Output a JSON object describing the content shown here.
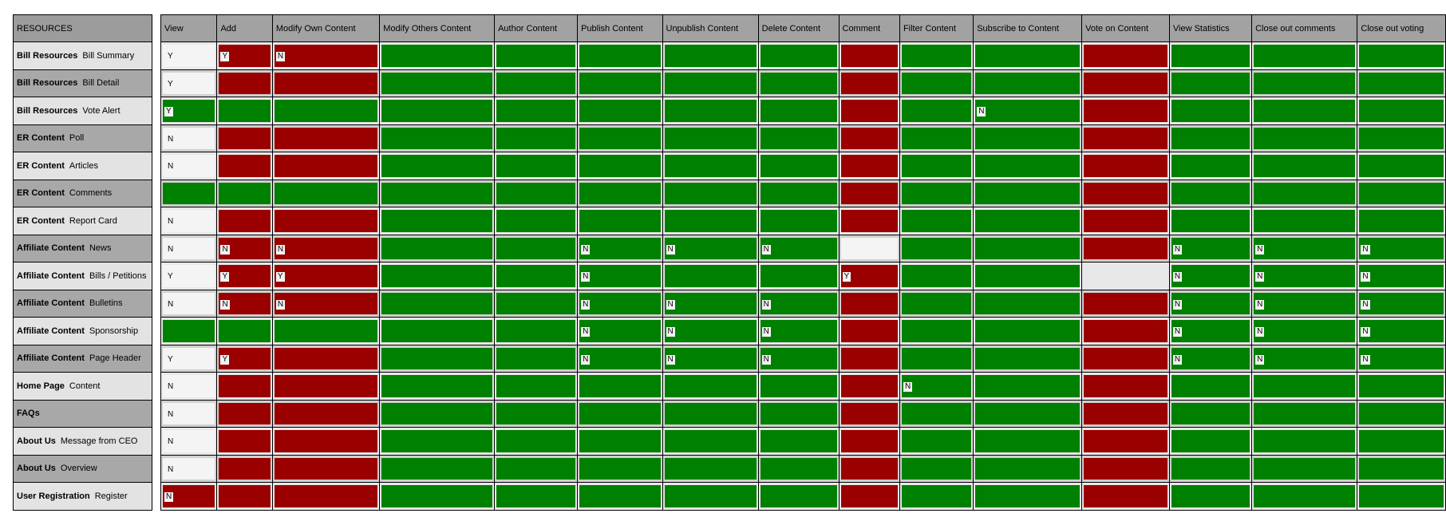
{
  "header": {
    "resources_label": "RESOURCES",
    "columns": [
      "View",
      "Add",
      "Modify Own Content",
      "Modify Others Content",
      "Author Content",
      "Publish Content",
      "Unpublish Content",
      "Delete Content",
      "Comment",
      "Filter Content",
      "Subscribe to Content",
      "Vote on Content",
      "View Statistics",
      "Close out comments",
      "Close out voting"
    ]
  },
  "colors": {
    "deny": "#9b0000",
    "allow": "#008000",
    "header": "#a2a2a2"
  },
  "rows": [
    {
      "group": "Bill Resources",
      "name": "Bill Summary",
      "cells": [
        [
          "w",
          "Y"
        ],
        [
          "r",
          "Y"
        ],
        [
          "r",
          "N"
        ],
        [
          "g",
          ""
        ],
        [
          "g",
          ""
        ],
        [
          "g",
          ""
        ],
        [
          "g",
          ""
        ],
        [
          "g",
          ""
        ],
        [
          "r",
          ""
        ],
        [
          "g",
          ""
        ],
        [
          "g",
          ""
        ],
        [
          "r",
          ""
        ],
        [
          "g",
          ""
        ],
        [
          "g",
          ""
        ],
        [
          "g",
          ""
        ]
      ]
    },
    {
      "group": "Bill Resources",
      "name": "Bill Detail",
      "cells": [
        [
          "w",
          "Y"
        ],
        [
          "r",
          ""
        ],
        [
          "r",
          ""
        ],
        [
          "g",
          ""
        ],
        [
          "g",
          ""
        ],
        [
          "g",
          ""
        ],
        [
          "g",
          ""
        ],
        [
          "g",
          ""
        ],
        [
          "r",
          ""
        ],
        [
          "g",
          ""
        ],
        [
          "g",
          ""
        ],
        [
          "r",
          ""
        ],
        [
          "g",
          ""
        ],
        [
          "g",
          ""
        ],
        [
          "g",
          ""
        ]
      ]
    },
    {
      "group": "Bill Resources",
      "name": "Vote Alert",
      "cells": [
        [
          "g",
          "Y"
        ],
        [
          "g",
          ""
        ],
        [
          "g",
          ""
        ],
        [
          "g",
          ""
        ],
        [
          "g",
          ""
        ],
        [
          "g",
          ""
        ],
        [
          "g",
          ""
        ],
        [
          "g",
          ""
        ],
        [
          "r",
          ""
        ],
        [
          "g",
          ""
        ],
        [
          "g",
          "N"
        ],
        [
          "r",
          ""
        ],
        [
          "g",
          ""
        ],
        [
          "g",
          ""
        ],
        [
          "g",
          ""
        ]
      ]
    },
    {
      "group": "ER Content",
      "name": "Poll",
      "cells": [
        [
          "w",
          "N"
        ],
        [
          "r",
          ""
        ],
        [
          "r",
          ""
        ],
        [
          "g",
          ""
        ],
        [
          "g",
          ""
        ],
        [
          "g",
          ""
        ],
        [
          "g",
          ""
        ],
        [
          "g",
          ""
        ],
        [
          "r",
          ""
        ],
        [
          "g",
          ""
        ],
        [
          "g",
          ""
        ],
        [
          "r",
          ""
        ],
        [
          "g",
          ""
        ],
        [
          "g",
          ""
        ],
        [
          "g",
          ""
        ]
      ]
    },
    {
      "group": "ER Content",
      "name": "Articles",
      "cells": [
        [
          "w",
          "N"
        ],
        [
          "r",
          ""
        ],
        [
          "r",
          ""
        ],
        [
          "g",
          ""
        ],
        [
          "g",
          ""
        ],
        [
          "g",
          ""
        ],
        [
          "g",
          ""
        ],
        [
          "g",
          ""
        ],
        [
          "r",
          ""
        ],
        [
          "g",
          ""
        ],
        [
          "g",
          ""
        ],
        [
          "r",
          ""
        ],
        [
          "g",
          ""
        ],
        [
          "g",
          ""
        ],
        [
          "g",
          ""
        ]
      ]
    },
    {
      "group": "ER Content",
      "name": "Comments",
      "cells": [
        [
          "g",
          ""
        ],
        [
          "g",
          ""
        ],
        [
          "g",
          ""
        ],
        [
          "g",
          ""
        ],
        [
          "g",
          ""
        ],
        [
          "g",
          ""
        ],
        [
          "g",
          ""
        ],
        [
          "g",
          ""
        ],
        [
          "r",
          ""
        ],
        [
          "g",
          ""
        ],
        [
          "g",
          ""
        ],
        [
          "r",
          ""
        ],
        [
          "g",
          ""
        ],
        [
          "g",
          ""
        ],
        [
          "g",
          ""
        ]
      ]
    },
    {
      "group": "ER Content",
      "name": "Report Card",
      "cells": [
        [
          "w",
          "N"
        ],
        [
          "r",
          ""
        ],
        [
          "r",
          ""
        ],
        [
          "g",
          ""
        ],
        [
          "g",
          ""
        ],
        [
          "g",
          ""
        ],
        [
          "g",
          ""
        ],
        [
          "g",
          ""
        ],
        [
          "r",
          ""
        ],
        [
          "g",
          ""
        ],
        [
          "g",
          ""
        ],
        [
          "r",
          ""
        ],
        [
          "g",
          ""
        ],
        [
          "g",
          ""
        ],
        [
          "g",
          ""
        ]
      ]
    },
    {
      "group": "Affiliate Content",
      "name": "News",
      "cells": [
        [
          "w",
          "N"
        ],
        [
          "r",
          "N"
        ],
        [
          "r",
          "N"
        ],
        [
          "g",
          ""
        ],
        [
          "g",
          ""
        ],
        [
          "g",
          "N"
        ],
        [
          "g",
          "N"
        ],
        [
          "g",
          "N"
        ],
        [
          "w",
          ""
        ],
        [
          "g",
          ""
        ],
        [
          "g",
          ""
        ],
        [
          "r",
          ""
        ],
        [
          "g",
          "N"
        ],
        [
          "g",
          "N"
        ],
        [
          "g",
          "N"
        ]
      ]
    },
    {
      "group": "Affiliate Content",
      "name": "Bills / Petitions",
      "cells": [
        [
          "w",
          "Y"
        ],
        [
          "r",
          "Y"
        ],
        [
          "r",
          "Y"
        ],
        [
          "g",
          ""
        ],
        [
          "g",
          ""
        ],
        [
          "g",
          "N"
        ],
        [
          "g",
          ""
        ],
        [
          "g",
          ""
        ],
        [
          "r",
          "Y"
        ],
        [
          "g",
          ""
        ],
        [
          "g",
          ""
        ],
        [
          "e",
          ""
        ],
        [
          "g",
          "N"
        ],
        [
          "g",
          "N"
        ],
        [
          "g",
          "N"
        ]
      ]
    },
    {
      "group": "Affiliate Content",
      "name": "Bulletins",
      "cells": [
        [
          "w",
          "N"
        ],
        [
          "r",
          "N"
        ],
        [
          "r",
          "N"
        ],
        [
          "g",
          ""
        ],
        [
          "g",
          ""
        ],
        [
          "g",
          "N"
        ],
        [
          "g",
          "N"
        ],
        [
          "g",
          "N"
        ],
        [
          "r",
          ""
        ],
        [
          "g",
          ""
        ],
        [
          "g",
          ""
        ],
        [
          "r",
          ""
        ],
        [
          "g",
          "N"
        ],
        [
          "g",
          "N"
        ],
        [
          "g",
          "N"
        ]
      ]
    },
    {
      "group": "Affiliate Content",
      "name": "Sponsorship",
      "cells": [
        [
          "g",
          ""
        ],
        [
          "g",
          ""
        ],
        [
          "g",
          ""
        ],
        [
          "g",
          ""
        ],
        [
          "g",
          ""
        ],
        [
          "g",
          "N"
        ],
        [
          "g",
          "N"
        ],
        [
          "g",
          "N"
        ],
        [
          "r",
          ""
        ],
        [
          "g",
          ""
        ],
        [
          "g",
          ""
        ],
        [
          "r",
          ""
        ],
        [
          "g",
          "N"
        ],
        [
          "g",
          "N"
        ],
        [
          "g",
          "N"
        ]
      ]
    },
    {
      "group": "Affiliate Content",
      "name": "Page Header",
      "cells": [
        [
          "w",
          "Y"
        ],
        [
          "r",
          "Y"
        ],
        [
          "r",
          ""
        ],
        [
          "g",
          ""
        ],
        [
          "g",
          ""
        ],
        [
          "g",
          "N"
        ],
        [
          "g",
          "N"
        ],
        [
          "g",
          "N"
        ],
        [
          "r",
          ""
        ],
        [
          "g",
          ""
        ],
        [
          "g",
          ""
        ],
        [
          "r",
          ""
        ],
        [
          "g",
          "N"
        ],
        [
          "g",
          "N"
        ],
        [
          "g",
          "N"
        ]
      ]
    },
    {
      "group": "Home Page",
      "name": "Content",
      "cells": [
        [
          "w",
          "N"
        ],
        [
          "r",
          ""
        ],
        [
          "r",
          ""
        ],
        [
          "g",
          ""
        ],
        [
          "g",
          ""
        ],
        [
          "g",
          ""
        ],
        [
          "g",
          ""
        ],
        [
          "g",
          ""
        ],
        [
          "r",
          ""
        ],
        [
          "g",
          "N"
        ],
        [
          "g",
          ""
        ],
        [
          "r",
          ""
        ],
        [
          "g",
          ""
        ],
        [
          "g",
          ""
        ],
        [
          "g",
          ""
        ]
      ]
    },
    {
      "group": "FAQs",
      "name": "",
      "cells": [
        [
          "w",
          "N"
        ],
        [
          "r",
          ""
        ],
        [
          "r",
          ""
        ],
        [
          "g",
          ""
        ],
        [
          "g",
          ""
        ],
        [
          "g",
          ""
        ],
        [
          "g",
          ""
        ],
        [
          "g",
          ""
        ],
        [
          "r",
          ""
        ],
        [
          "g",
          ""
        ],
        [
          "g",
          ""
        ],
        [
          "r",
          ""
        ],
        [
          "g",
          ""
        ],
        [
          "g",
          ""
        ],
        [
          "g",
          ""
        ]
      ]
    },
    {
      "group": "About Us",
      "name": "Message from CEO",
      "cells": [
        [
          "w",
          "N"
        ],
        [
          "r",
          ""
        ],
        [
          "r",
          ""
        ],
        [
          "g",
          ""
        ],
        [
          "g",
          ""
        ],
        [
          "g",
          ""
        ],
        [
          "g",
          ""
        ],
        [
          "g",
          ""
        ],
        [
          "r",
          ""
        ],
        [
          "g",
          ""
        ],
        [
          "g",
          ""
        ],
        [
          "r",
          ""
        ],
        [
          "g",
          ""
        ],
        [
          "g",
          ""
        ],
        [
          "g",
          ""
        ]
      ]
    },
    {
      "group": "About Us",
      "name": "Overview",
      "cells": [
        [
          "w",
          "N"
        ],
        [
          "r",
          ""
        ],
        [
          "r",
          ""
        ],
        [
          "g",
          ""
        ],
        [
          "g",
          ""
        ],
        [
          "g",
          ""
        ],
        [
          "g",
          ""
        ],
        [
          "g",
          ""
        ],
        [
          "r",
          ""
        ],
        [
          "g",
          ""
        ],
        [
          "g",
          ""
        ],
        [
          "r",
          ""
        ],
        [
          "g",
          ""
        ],
        [
          "g",
          ""
        ],
        [
          "g",
          ""
        ]
      ]
    },
    {
      "group": "User Registration",
      "name": "Register",
      "cells": [
        [
          "r",
          "N"
        ],
        [
          "r",
          ""
        ],
        [
          "r",
          ""
        ],
        [
          "g",
          ""
        ],
        [
          "g",
          ""
        ],
        [
          "g",
          ""
        ],
        [
          "g",
          ""
        ],
        [
          "g",
          ""
        ],
        [
          "r",
          ""
        ],
        [
          "g",
          ""
        ],
        [
          "g",
          ""
        ],
        [
          "r",
          ""
        ],
        [
          "g",
          ""
        ],
        [
          "g",
          ""
        ],
        [
          "g",
          ""
        ]
      ]
    }
  ]
}
